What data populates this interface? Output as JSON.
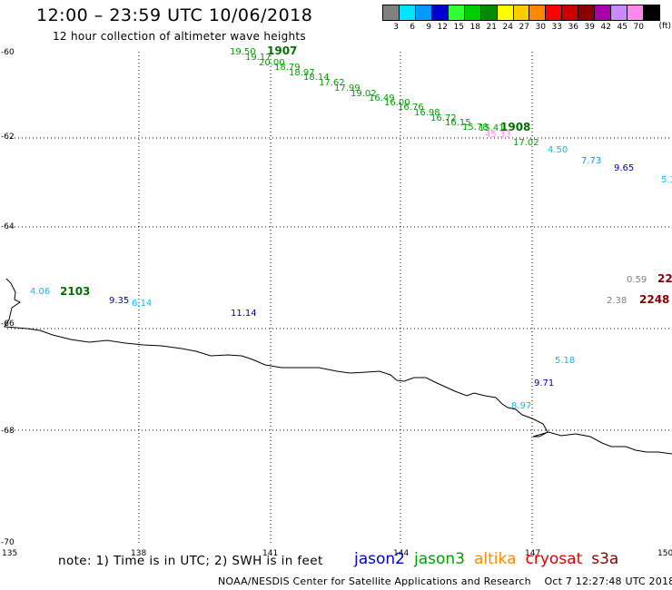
{
  "header": {
    "title": "12:00 – 23:59 UTC 10/06/2018",
    "subtitle": "12 hour collection of altimeter wave heights"
  },
  "legend": {
    "unit": "(ft)",
    "items": [
      {
        "label": "3",
        "color": "#808080"
      },
      {
        "label": "6",
        "color": "#00e5ff"
      },
      {
        "label": "9",
        "color": "#009bff"
      },
      {
        "label": "12",
        "color": "#0000cd"
      },
      {
        "label": "15",
        "color": "#33ff33"
      },
      {
        "label": "18",
        "color": "#00cc00"
      },
      {
        "label": "21",
        "color": "#008b00"
      },
      {
        "label": "24",
        "color": "#ffff00"
      },
      {
        "label": "27",
        "color": "#ffcc00"
      },
      {
        "label": "30",
        "color": "#ff8800"
      },
      {
        "label": "33",
        "color": "#ff0000"
      },
      {
        "label": "36",
        "color": "#cc0000"
      },
      {
        "label": "39",
        "color": "#8b0000"
      },
      {
        "label": "42",
        "color": "#aa00aa"
      },
      {
        "label": "45",
        "color": "#cc88ff"
      },
      {
        "label": "70",
        "color": "#ff88ee"
      },
      {
        "label": "",
        "color": "#000000"
      }
    ]
  },
  "axes": {
    "lon_ticks": [
      "135",
      "138",
      "141",
      "144",
      "147",
      "150"
    ],
    "lat_ticks": [
      "-60",
      "-62",
      "-64",
      "-66",
      "-68",
      "-70"
    ]
  },
  "observations": [
    {
      "text": "19.50",
      "color": "#00a000"
    },
    {
      "text": "1907",
      "color": "#007000"
    },
    {
      "text": "19.17",
      "color": "#00a000"
    },
    {
      "text": "20.00",
      "color": "#00a000"
    },
    {
      "text": "18.79",
      "color": "#00a000"
    },
    {
      "text": "18.97",
      "color": "#00a000"
    },
    {
      "text": "18.14",
      "color": "#00a000"
    },
    {
      "text": "17.62",
      "color": "#00a000"
    },
    {
      "text": "17.99",
      "color": "#00a000"
    },
    {
      "text": "19.02",
      "color": "#00a000"
    },
    {
      "text": "16.49",
      "color": "#00a000"
    },
    {
      "text": "16.00",
      "color": "#00a000"
    },
    {
      "text": "16.76",
      "color": "#00a000"
    },
    {
      "text": "16.98",
      "color": "#00a000"
    },
    {
      "text": "16.72",
      "color": "#00a000"
    },
    {
      "text": "16.15",
      "color": "#00a000"
    },
    {
      "text": "15.78",
      "color": "#00a000"
    },
    {
      "text": "15.41",
      "color": "#00a000"
    },
    {
      "text": "1908",
      "color": "#007000"
    },
    {
      "text": "45.33",
      "color": "#ff88ee"
    },
    {
      "text": "17.02",
      "color": "#00a000"
    },
    {
      "text": "4.50",
      "color": "#00bfff"
    },
    {
      "text": "7.73",
      "color": "#009bff"
    },
    {
      "text": "9.65",
      "color": "#0000aa"
    },
    {
      "text": "5.1",
      "color": "#00bfff"
    },
    {
      "text": "4.06",
      "color": "#00bfff"
    },
    {
      "text": "2103",
      "color": "#007000"
    },
    {
      "text": "9.35",
      "color": "#0000aa"
    },
    {
      "text": "6.14",
      "color": "#00bfff"
    },
    {
      "text": "11.14",
      "color": "#0000aa"
    },
    {
      "text": "0.59",
      "color": "#808080"
    },
    {
      "text": "22",
      "color": "#8b0000"
    },
    {
      "text": "2.38",
      "color": "#808080"
    },
    {
      "text": "2248",
      "color": "#8b0000"
    },
    {
      "text": "5.18",
      "color": "#00bfff"
    },
    {
      "text": "9.71",
      "color": "#0000aa"
    },
    {
      "text": "8.97",
      "color": "#00bfff"
    }
  ],
  "note": "note: 1) Time is in UTC; 2) SWH is in feet",
  "satellites": [
    {
      "name": "jason2",
      "color": "#0000cc"
    },
    {
      "name": "jason3",
      "color": "#00a000"
    },
    {
      "name": "altika",
      "color": "#ff8800"
    },
    {
      "name": "cryosat",
      "color": "#dd0000"
    },
    {
      "name": "s3a",
      "color": "#8b0000"
    }
  ],
  "footer": {
    "credit": "NOAA/NESDIS Center for Satellite Applications and Research",
    "timestamp": "Oct  7 12:27:48 UTC 2018"
  }
}
